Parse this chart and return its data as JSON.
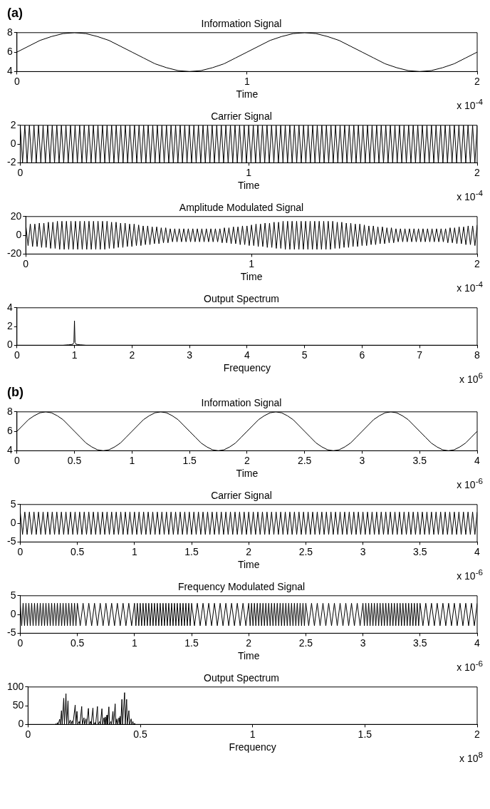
{
  "chart_data": [
    {
      "type": "line",
      "title": "Information Signal",
      "xlabel": "Time",
      "annotations": [
        "(a)",
        "x 10$^{-4}$"
      ],
      "xlim": [
        0,
        2
      ],
      "xticks": [
        0,
        1,
        2
      ],
      "ylim": [
        4,
        8
      ],
      "yticks": [
        4,
        6,
        8
      ],
      "color": "#000000",
      "x": [
        0,
        0.05,
        0.1,
        0.15,
        0.2,
        0.25,
        0.3,
        0.35,
        0.4,
        0.45,
        0.5,
        0.55,
        0.6,
        0.65,
        0.7,
        0.75,
        0.8,
        0.85,
        0.9,
        0.95,
        1,
        1.05,
        1.1,
        1.15,
        1.2,
        1.25,
        1.3,
        1.35,
        1.4,
        1.45,
        1.5,
        1.55,
        1.6,
        1.65,
        1.7,
        1.75,
        1.8,
        1.85,
        1.9,
        1.95,
        2
      ],
      "values": [
        6,
        6.6,
        7.2,
        7.6,
        7.9,
        8,
        7.9,
        7.6,
        7.2,
        6.6,
        6,
        5.4,
        4.8,
        4.4,
        4.1,
        4,
        4.1,
        4.4,
        4.8,
        5.4,
        6,
        6.6,
        7.2,
        7.6,
        7.9,
        8,
        7.9,
        7.6,
        7.2,
        6.6,
        6,
        5.4,
        4.8,
        4.4,
        4.1,
        4,
        4.1,
        4.4,
        4.8,
        5.4,
        6
      ]
    },
    {
      "type": "line",
      "title": "Carrier Signal",
      "xlabel": "Time",
      "annotations": [
        "x 10$^{-4}$"
      ],
      "xlim": [
        0,
        2
      ],
      "xticks": [
        0,
        1,
        2
      ],
      "ylim": [
        -2,
        2
      ],
      "yticks": [
        -2,
        0,
        2
      ],
      "color": "#000000",
      "x": [
        0,
        0.01,
        0.02,
        0.03,
        0.04,
        0.05,
        0.06,
        0.07,
        0.08,
        0.09,
        0.1,
        0.11,
        0.12,
        0.13,
        0.14,
        0.15,
        0.16,
        0.17,
        0.18,
        0.19,
        0.2,
        0.21,
        0.22,
        0.23,
        0.24,
        0.25,
        0.26,
        0.27,
        0.28,
        0.29,
        0.3,
        0.31,
        0.32,
        0.33,
        0.34,
        0.35,
        0.36,
        0.37,
        0.38,
        0.39,
        0.4,
        0.41,
        0.42,
        0.43,
        0.44,
        0.45,
        0.46,
        0.47,
        0.48,
        0.49,
        0.5,
        0.51,
        0.52,
        0.53,
        0.54,
        0.55,
        0.56,
        0.57,
        0.58,
        0.59,
        0.6,
        0.61,
        0.62,
        0.63,
        0.64,
        0.65,
        0.66,
        0.67,
        0.68,
        0.69,
        0.7,
        0.71,
        0.72,
        0.73,
        0.74,
        0.75,
        0.76,
        0.77,
        0.78,
        0.79,
        0.8,
        0.81,
        0.82,
        0.83,
        0.84,
        0.85,
        0.86,
        0.87,
        0.88,
        0.89,
        0.9,
        0.91,
        0.92,
        0.93,
        0.94,
        0.95,
        0.96,
        0.97,
        0.98,
        0.99,
        1,
        1.01,
        1.02,
        1.03,
        1.04,
        1.05,
        1.06,
        1.07,
        1.08,
        1.09,
        1.1,
        1.11,
        1.12,
        1.13,
        1.14,
        1.15,
        1.16,
        1.17,
        1.18,
        1.19,
        1.2,
        1.21,
        1.22,
        1.23,
        1.24,
        1.25,
        1.26,
        1.27,
        1.28,
        1.29,
        1.3,
        1.31,
        1.32,
        1.33,
        1.34,
        1.35,
        1.36,
        1.37,
        1.38,
        1.39,
        1.4,
        1.41,
        1.42,
        1.43,
        1.44,
        1.45,
        1.46,
        1.47,
        1.48,
        1.49,
        1.5,
        1.51,
        1.52,
        1.53,
        1.54,
        1.55,
        1.56,
        1.57,
        1.58,
        1.59,
        1.6,
        1.61,
        1.62,
        1.63,
        1.64,
        1.65,
        1.66,
        1.67,
        1.68,
        1.69,
        1.7,
        1.71,
        1.72,
        1.73,
        1.74,
        1.75,
        1.76,
        1.77,
        1.78,
        1.79,
        1.8,
        1.81,
        1.82,
        1.83,
        1.84,
        1.85,
        1.86,
        1.87,
        1.88,
        1.89,
        1.9,
        1.91,
        1.92,
        1.93,
        1.94,
        1.95,
        1.96,
        1.97,
        1.98,
        1.99,
        2
      ],
      "values": [
        2,
        -2,
        2,
        -2,
        2,
        -2,
        2,
        -2,
        2,
        -2,
        2,
        -2,
        2,
        -2,
        2,
        -2,
        2,
        -2,
        2,
        -2,
        2,
        -2,
        2,
        -2,
        2,
        -2,
        2,
        -2,
        2,
        -2,
        2,
        -2,
        2,
        -2,
        2,
        -2,
        2,
        -2,
        2,
        -2,
        2,
        -2,
        2,
        -2,
        2,
        -2,
        2,
        -2,
        2,
        -2,
        2,
        -2,
        2,
        -2,
        2,
        -2,
        2,
        -2,
        2,
        -2,
        2,
        -2,
        2,
        -2,
        2,
        -2,
        2,
        -2,
        2,
        -2,
        2,
        -2,
        2,
        -2,
        2,
        -2,
        2,
        -2,
        2,
        -2,
        2,
        -2,
        2,
        -2,
        2,
        -2,
        2,
        -2,
        2,
        -2,
        2,
        -2,
        2,
        -2,
        2,
        -2,
        2,
        -2,
        2,
        -2,
        2,
        -2,
        2,
        -2,
        2,
        -2,
        2,
        -2,
        2,
        -2,
        2,
        -2,
        2,
        -2,
        2,
        -2,
        2,
        -2,
        2,
        -2,
        2,
        -2,
        2,
        -2,
        2,
        -2,
        2,
        -2,
        2,
        -2,
        2,
        -2,
        2,
        -2,
        2,
        -2,
        2,
        -2,
        2,
        -2,
        2,
        -2,
        2,
        -2,
        2,
        -2,
        2,
        -2,
        2,
        -2,
        2,
        -2,
        2,
        -2,
        2,
        -2,
        2,
        -2,
        2,
        -2,
        2,
        -2,
        2,
        -2,
        2,
        -2,
        2,
        -2,
        2,
        -2,
        2,
        -2,
        2,
        -2,
        2,
        -2,
        2,
        -2,
        2,
        -2,
        2,
        -2,
        2,
        -2,
        2,
        -2,
        2,
        -2,
        2,
        -2,
        2,
        -2,
        2,
        -2,
        2,
        -2,
        2,
        -2,
        2,
        -2,
        2
      ]
    },
    {
      "type": "line",
      "title": "Amplitude Modulated Signal",
      "xlabel": "Time",
      "annotations": [
        "x 10$^{-4}$"
      ],
      "xlim": [
        0,
        2
      ],
      "xticks": [
        0,
        1,
        2
      ],
      "ylim": [
        -20,
        20
      ],
      "yticks": [
        -20,
        0,
        20
      ],
      "color": "#000000",
      "x": [
        0,
        0.01,
        0.02,
        0.03,
        0.04,
        0.05,
        0.06,
        0.07,
        0.08,
        0.09,
        0.1,
        0.11,
        0.12,
        0.13,
        0.14,
        0.15,
        0.16,
        0.17,
        0.18,
        0.19,
        0.2,
        0.21,
        0.22,
        0.23,
        0.24,
        0.25,
        0.26,
        0.27,
        0.28,
        0.29,
        0.3,
        0.31,
        0.32,
        0.33,
        0.34,
        0.35,
        0.36,
        0.37,
        0.38,
        0.39,
        0.4,
        0.41,
        0.42,
        0.43,
        0.44,
        0.45,
        0.46,
        0.47,
        0.48,
        0.49,
        0.5,
        0.51,
        0.52,
        0.53,
        0.54,
        0.55,
        0.56,
        0.57,
        0.58,
        0.59,
        0.6,
        0.61,
        0.62,
        0.63,
        0.64,
        0.65,
        0.66,
        0.67,
        0.68,
        0.69,
        0.7,
        0.71,
        0.72,
        0.73,
        0.74,
        0.75,
        0.76,
        0.77,
        0.78,
        0.79,
        0.8,
        0.81,
        0.82,
        0.83,
        0.84,
        0.85,
        0.86,
        0.87,
        0.88,
        0.89,
        0.9,
        0.91,
        0.92,
        0.93,
        0.94,
        0.95,
        0.96,
        0.97,
        0.98,
        0.99,
        1,
        1.01,
        1.02,
        1.03,
        1.04,
        1.05,
        1.06,
        1.07,
        1.08,
        1.09,
        1.1,
        1.11,
        1.12,
        1.13,
        1.14,
        1.15,
        1.16,
        1.17,
        1.18,
        1.19,
        1.2,
        1.21,
        1.22,
        1.23,
        1.24,
        1.25,
        1.26,
        1.27,
        1.28,
        1.29,
        1.3,
        1.31,
        1.32,
        1.33,
        1.34,
        1.35,
        1.36,
        1.37,
        1.38,
        1.39,
        1.4,
        1.41,
        1.42,
        1.43,
        1.44,
        1.45,
        1.46,
        1.47,
        1.48,
        1.49,
        1.5,
        1.51,
        1.52,
        1.53,
        1.54,
        1.55,
        1.56,
        1.57,
        1.58,
        1.59,
        1.6,
        1.61,
        1.62,
        1.63,
        1.64,
        1.65,
        1.66,
        1.67,
        1.68,
        1.69,
        1.7,
        1.71,
        1.72,
        1.73,
        1.74,
        1.75,
        1.76,
        1.77,
        1.78,
        1.79,
        1.8,
        1.81,
        1.82,
        1.83,
        1.84,
        1.85,
        1.86,
        1.87,
        1.88,
        1.89,
        1.9,
        1.91,
        1.92,
        1.93,
        1.94,
        1.95,
        1.96,
        1.97,
        1.98,
        1.99,
        2
      ],
      "values": [
        11,
        -11,
        12,
        -12,
        12,
        -12,
        13,
        -13,
        13,
        -13,
        14,
        -14,
        14,
        -14,
        15,
        -15,
        15,
        -15,
        15,
        -15,
        15,
        -15,
        15,
        -15,
        15,
        -15,
        15,
        -15,
        15,
        -15,
        15,
        -15,
        15,
        -15,
        15,
        -15,
        15,
        -14,
        14,
        -14,
        14,
        -13,
        13,
        -13,
        13,
        -12,
        12,
        -12,
        12,
        -11,
        11,
        -11,
        10,
        -10,
        10,
        -10,
        9,
        -9,
        9,
        -9,
        8,
        -8,
        8,
        -8,
        7,
        -7,
        7,
        -7,
        7,
        -7,
        7,
        -7,
        7,
        -7,
        7,
        -7,
        7,
        -7,
        7,
        -7,
        7,
        -7,
        7,
        -7,
        7,
        -7,
        7,
        -8,
        8,
        -8,
        8,
        -9,
        9,
        -9,
        9,
        -10,
        10,
        -10,
        10,
        -11,
        11,
        -11,
        12,
        -12,
        12,
        -12,
        13,
        -13,
        13,
        -13,
        14,
        -14,
        14,
        -14,
        15,
        -15,
        15,
        -15,
        15,
        -15,
        15,
        -15,
        15,
        -15,
        15,
        -15,
        15,
        -15,
        15,
        -15,
        15,
        -15,
        15,
        -15,
        15,
        -15,
        15,
        -14,
        14,
        -14,
        14,
        -13,
        13,
        -13,
        13,
        -12,
        12,
        -12,
        12,
        -11,
        11,
        -11,
        10,
        -10,
        10,
        -10,
        9,
        -9,
        9,
        -9,
        8,
        -8,
        8,
        -8,
        7,
        -7,
        7,
        -7,
        7,
        -7,
        7,
        -7,
        7,
        -7,
        7,
        -7,
        7,
        -7,
        7,
        -7,
        7,
        -7,
        7,
        -7,
        7,
        -7,
        7,
        -8,
        8,
        -8,
        8,
        -9,
        9,
        -9,
        9,
        -10,
        10,
        -10,
        10,
        -11,
        11
      ]
    },
    {
      "type": "line",
      "title": "Output Spectrum",
      "xlabel": "Frequency",
      "annotations": [
        "x 10$^{6}$"
      ],
      "xlim": [
        0,
        8
      ],
      "xticks": [
        0,
        1,
        2,
        3,
        4,
        5,
        6,
        7,
        8
      ],
      "ylim": [
        0,
        4
      ],
      "yticks": [
        0,
        2,
        4
      ],
      "color": "#000000",
      "x": [
        0,
        0.8,
        0.9,
        0.97,
        0.99,
        1,
        1.01,
        1.03,
        1.1,
        1.2,
        8
      ],
      "values": [
        0,
        0,
        0.05,
        0.1,
        0.3,
        2.6,
        0.3,
        0.1,
        0.05,
        0,
        0
      ]
    },
    {
      "type": "line",
      "title": "Information Signal",
      "xlabel": "Time",
      "annotations": [
        "(b)",
        "x 10$^{-6}$"
      ],
      "xlim": [
        0,
        4
      ],
      "xticks": [
        0,
        0.5,
        1,
        1.5,
        2,
        2.5,
        3,
        3.5,
        4
      ],
      "ylim": [
        4,
        8
      ],
      "yticks": [
        4,
        6,
        8
      ],
      "color": "#000000",
      "x": [
        0,
        0.05,
        0.1,
        0.15,
        0.2,
        0.25,
        0.3,
        0.35,
        0.4,
        0.45,
        0.5,
        0.55,
        0.6,
        0.65,
        0.7,
        0.75,
        0.8,
        0.85,
        0.9,
        0.95,
        1,
        1.05,
        1.1,
        1.15,
        1.2,
        1.25,
        1.3,
        1.35,
        1.4,
        1.45,
        1.5,
        1.55,
        1.6,
        1.65,
        1.7,
        1.75,
        1.8,
        1.85,
        1.9,
        1.95,
        2,
        2.05,
        2.1,
        2.15,
        2.2,
        2.25,
        2.3,
        2.35,
        2.4,
        2.45,
        2.5,
        2.55,
        2.6,
        2.65,
        2.7,
        2.75,
        2.8,
        2.85,
        2.9,
        2.95,
        3,
        3.05,
        3.1,
        3.15,
        3.2,
        3.25,
        3.3,
        3.35,
        3.4,
        3.45,
        3.5,
        3.55,
        3.6,
        3.65,
        3.7,
        3.75,
        3.8,
        3.85,
        3.9,
        3.95,
        4
      ],
      "values": [
        6,
        6.6,
        7.2,
        7.6,
        7.9,
        8,
        7.9,
        7.6,
        7.2,
        6.6,
        6,
        5.4,
        4.8,
        4.4,
        4.1,
        4,
        4.1,
        4.4,
        4.8,
        5.4,
        6,
        6.6,
        7.2,
        7.6,
        7.9,
        8,
        7.9,
        7.6,
        7.2,
        6.6,
        6,
        5.4,
        4.8,
        4.4,
        4.1,
        4,
        4.1,
        4.4,
        4.8,
        5.4,
        6,
        6.6,
        7.2,
        7.6,
        7.9,
        8,
        7.9,
        7.6,
        7.2,
        6.6,
        6,
        5.4,
        4.8,
        4.4,
        4.1,
        4,
        4.1,
        4.4,
        4.8,
        5.4,
        6,
        6.6,
        7.2,
        7.6,
        7.9,
        8,
        7.9,
        7.6,
        7.2,
        6.6,
        6,
        5.4,
        4.8,
        4.4,
        4.1,
        4,
        4.1,
        4.4,
        4.8,
        5.4,
        6
      ]
    },
    {
      "type": "line",
      "title": "Carrier Signal",
      "xlabel": "Time",
      "annotations": [
        "x 10$^{-6}$"
      ],
      "xlim": [
        0,
        4
      ],
      "xticks": [
        0,
        0.5,
        1,
        1.5,
        2,
        2.5,
        3,
        3.5,
        4
      ],
      "ylim": [
        -5,
        5
      ],
      "yticks": [
        -5,
        0,
        5
      ],
      "color": "#000000",
      "x": [
        0,
        0.02,
        0.04,
        0.06,
        0.08,
        0.1,
        0.12,
        0.14,
        0.16,
        0.18,
        0.2,
        0.22,
        0.24,
        0.26,
        0.28,
        0.3,
        0.32,
        0.34,
        0.36,
        0.38,
        0.4,
        0.42,
        0.44,
        0.46,
        0.48,
        0.5,
        0.52,
        0.54,
        0.56,
        0.58,
        0.6,
        0.62,
        0.64,
        0.66,
        0.68,
        0.7,
        0.72,
        0.74,
        0.76,
        0.78,
        0.8,
        0.82,
        0.84,
        0.86,
        0.88,
        0.9,
        0.92,
        0.94,
        0.96,
        0.98,
        1,
        1.02,
        1.04,
        1.06,
        1.08,
        1.1,
        1.12,
        1.14,
        1.16,
        1.18,
        1.2,
        1.22,
        1.24,
        1.26,
        1.28,
        1.3,
        1.32,
        1.34,
        1.36,
        1.38,
        1.4,
        1.42,
        1.44,
        1.46,
        1.48,
        1.5,
        1.52,
        1.54,
        1.56,
        1.58,
        1.6,
        1.62,
        1.64,
        1.66,
        1.68,
        1.7,
        1.72,
        1.74,
        1.76,
        1.78,
        1.8,
        1.82,
        1.84,
        1.86,
        1.88,
        1.9,
        1.92,
        1.94,
        1.96,
        1.98,
        2,
        2.02,
        2.04,
        2.06,
        2.08,
        2.1,
        2.12,
        2.14,
        2.16,
        2.18,
        2.2,
        2.22,
        2.24,
        2.26,
        2.28,
        2.3,
        2.32,
        2.34,
        2.36,
        2.38,
        2.4,
        2.42,
        2.44,
        2.46,
        2.48,
        2.5,
        2.52,
        2.54,
        2.56,
        2.58,
        2.6,
        2.62,
        2.64,
        2.66,
        2.68,
        2.7,
        2.72,
        2.74,
        2.76,
        2.78,
        2.8,
        2.82,
        2.84,
        2.86,
        2.88,
        2.9,
        2.92,
        2.94,
        2.96,
        2.98,
        3,
        3.02,
        3.04,
        3.06,
        3.08,
        3.1,
        3.12,
        3.14,
        3.16,
        3.18,
        3.2,
        3.22,
        3.24,
        3.26,
        3.28,
        3.3,
        3.32,
        3.34,
        3.36,
        3.38,
        3.4,
        3.42,
        3.44,
        3.46,
        3.48,
        3.5,
        3.52,
        3.54,
        3.56,
        3.58,
        3.6,
        3.62,
        3.64,
        3.66,
        3.68,
        3.7,
        3.72,
        3.74,
        3.76,
        3.78,
        3.8,
        3.82,
        3.84,
        3.86,
        3.88,
        3.9,
        3.92,
        3.94,
        3.96,
        3.98,
        4
      ],
      "values": [
        3,
        -3,
        3,
        -3,
        3,
        -3,
        3,
        -3,
        3,
        -3,
        3,
        -3,
        3,
        -3,
        3,
        -3,
        3,
        -3,
        3,
        -3,
        3,
        -3,
        3,
        -3,
        3,
        -3,
        3,
        -3,
        3,
        -3,
        3,
        -3,
        3,
        -3,
        3,
        -3,
        3,
        -3,
        3,
        -3,
        3,
        -3,
        3,
        -3,
        3,
        -3,
        3,
        -3,
        3,
        -3,
        3,
        -3,
        3,
        -3,
        3,
        -3,
        3,
        -3,
        3,
        -3,
        3,
        -3,
        3,
        -3,
        3,
        -3,
        3,
        -3,
        3,
        -3,
        3,
        -3,
        3,
        -3,
        3,
        -3,
        3,
        -3,
        3,
        -3,
        3,
        -3,
        3,
        -3,
        3,
        -3,
        3,
        -3,
        3,
        -3,
        3,
        -3,
        3,
        -3,
        3,
        -3,
        3,
        -3,
        3,
        -3,
        3,
        -3,
        3,
        -3,
        3,
        -3,
        3,
        -3,
        3,
        -3,
        3,
        -3,
        3,
        -3,
        3,
        -3,
        3,
        -3,
        3,
        -3,
        3,
        -3,
        3,
        -3,
        3,
        -3,
        3,
        -3,
        3,
        -3,
        3,
        -3,
        3,
        -3,
        3,
        -3,
        3,
        -3,
        3,
        -3,
        3,
        -3,
        3,
        -3,
        3,
        -3,
        3,
        -3,
        3,
        -3,
        3,
        -3,
        3,
        -3,
        3,
        -3,
        3,
        -3,
        3,
        -3,
        3,
        -3,
        3,
        -3,
        3,
        -3,
        3,
        -3,
        3,
        -3,
        3,
        -3,
        3,
        -3,
        3,
        -3,
        3,
        -3,
        3,
        -3,
        3,
        -3,
        3,
        -3,
        3,
        -3,
        3,
        -3,
        3,
        -3,
        3,
        -3,
        3,
        -3,
        3,
        -3,
        3,
        -3,
        3,
        -3,
        3
      ]
    },
    {
      "type": "line",
      "title": "Frequency Modulated Signal",
      "xlabel": "Time",
      "annotations": [
        "x 10$^{-6}$"
      ],
      "xlim": [
        0,
        4
      ],
      "xticks": [
        0,
        0.5,
        1,
        1.5,
        2,
        2.5,
        3,
        3.5,
        4
      ],
      "ylim": [
        -5,
        5
      ],
      "yticks": [
        -5,
        0,
        5
      ],
      "color": "#000000",
      "x": [
        0,
        0.0125,
        0.025,
        0.0375,
        0.05,
        0.0625,
        0.075,
        0.0875,
        0.1,
        0.1125,
        0.125,
        0.1375,
        0.15,
        0.1625,
        0.175,
        0.1875,
        0.2,
        0.2125,
        0.225,
        0.2375,
        0.25,
        0.2625,
        0.275,
        0.2875,
        0.3,
        0.3125,
        0.325,
        0.3375,
        0.35,
        0.3625,
        0.375,
        0.3875,
        0.4,
        0.4125,
        0.425,
        0.4375,
        0.45,
        0.4625,
        0.475,
        0.4875,
        0.5,
        0.525,
        0.55,
        0.575,
        0.6,
        0.625,
        0.65,
        0.675,
        0.7,
        0.725,
        0.75,
        0.775,
        0.8,
        0.825,
        0.85,
        0.875,
        0.9,
        0.925,
        0.95,
        0.975,
        1,
        1.0125,
        1.025,
        1.0375,
        1.05,
        1.0625,
        1.075,
        1.0875,
        1.1,
        1.1125,
        1.125,
        1.1375,
        1.15,
        1.1625,
        1.175,
        1.1875,
        1.2,
        1.2125,
        1.225,
        1.2375,
        1.25,
        1.2625,
        1.275,
        1.2875,
        1.3,
        1.3125,
        1.325,
        1.3375,
        1.35,
        1.3625,
        1.375,
        1.3875,
        1.4,
        1.4125,
        1.425,
        1.4375,
        1.45,
        1.4625,
        1.475,
        1.4875,
        1.5,
        1.525,
        1.55,
        1.575,
        1.6,
        1.625,
        1.65,
        1.675,
        1.7,
        1.725,
        1.75,
        1.775,
        1.8,
        1.825,
        1.85,
        1.875,
        1.9,
        1.925,
        1.95,
        1.975,
        2,
        2.0125,
        2.025,
        2.0375,
        2.05,
        2.0625,
        2.075,
        2.0875,
        2.1,
        2.1125,
        2.125,
        2.1375,
        2.15,
        2.1625,
        2.175,
        2.1875,
        2.2,
        2.2125,
        2.225,
        2.2375,
        2.25,
        2.2625,
        2.275,
        2.2875,
        2.3,
        2.3125,
        2.325,
        2.3375,
        2.35,
        2.3625,
        2.375,
        2.3875,
        2.4,
        2.4125,
        2.425,
        2.4375,
        2.45,
        2.4625,
        2.475,
        2.4875,
        2.5,
        2.525,
        2.55,
        2.575,
        2.6,
        2.625,
        2.65,
        2.675,
        2.7,
        2.725,
        2.75,
        2.775,
        2.8,
        2.825,
        2.85,
        2.875,
        2.9,
        2.925,
        2.95,
        2.975,
        3,
        3.0125,
        3.025,
        3.0375,
        3.05,
        3.0625,
        3.075,
        3.0875,
        3.1,
        3.1125,
        3.125,
        3.1375,
        3.15,
        3.1625,
        3.175,
        3.1875,
        3.2,
        3.2125,
        3.225,
        3.2375,
        3.25,
        3.2625,
        3.275,
        3.2875,
        3.3,
        3.3125,
        3.325,
        3.3375,
        3.35,
        3.3625,
        3.375,
        3.3875,
        3.4,
        3.4125,
        3.425,
        3.4375,
        3.45,
        3.4625,
        3.475,
        3.4875,
        3.5,
        3.525,
        3.55,
        3.575,
        3.6,
        3.625,
        3.65,
        3.675,
        3.7,
        3.725,
        3.75,
        3.775,
        3.8,
        3.825,
        3.85,
        3.875,
        3.9,
        3.925,
        3.95,
        3.975,
        4
      ],
      "values": [
        3,
        -3,
        3,
        -3,
        3,
        -3,
        3,
        -3,
        3,
        -3,
        3,
        -3,
        3,
        -3,
        3,
        -3,
        3,
        -3,
        3,
        -3,
        3,
        -3,
        3,
        -3,
        3,
        -3,
        3,
        -3,
        3,
        -3,
        3,
        -3,
        3,
        -3,
        3,
        -3,
        3,
        -3,
        3,
        -3,
        3,
        -3,
        3,
        -3,
        3,
        -3,
        3,
        -3,
        3,
        -3,
        3,
        -3,
        3,
        -3,
        3,
        -3,
        3,
        -3,
        3,
        -3,
        3,
        -3,
        3,
        -3,
        3,
        -3,
        3,
        -3,
        3,
        -3,
        3,
        -3,
        3,
        -3,
        3,
        -3,
        3,
        -3,
        3,
        -3,
        3,
        -3,
        3,
        -3,
        3,
        -3,
        3,
        -3,
        3,
        -3,
        3,
        -3,
        3,
        -3,
        3,
        -3,
        3,
        -3,
        3,
        -3,
        3,
        -3,
        3,
        -3,
        3,
        -3,
        3,
        -3,
        3,
        -3,
        3,
        -3,
        3,
        -3,
        3,
        -3,
        3,
        -3,
        3,
        -3,
        3,
        -3,
        3,
        -3,
        3,
        -3,
        3,
        -3,
        3,
        -3,
        3,
        -3,
        3,
        -3,
        3,
        -3,
        3,
        -3,
        3,
        -3,
        3,
        -3,
        3,
        -3,
        3,
        -3,
        3,
        -3,
        3,
        -3,
        3,
        -3,
        3,
        -3,
        3,
        -3,
        3,
        -3,
        3,
        -3,
        3,
        -3,
        3,
        -3,
        3,
        -3,
        3,
        -3,
        3,
        -3,
        3,
        -3,
        3,
        -3,
        3,
        -3,
        3,
        -3,
        3,
        -3,
        3,
        -3,
        3,
        -3,
        3,
        -3,
        3,
        -3,
        3,
        -3,
        3,
        -3,
        3,
        -3,
        3,
        -3,
        3,
        -3,
        3,
        -3,
        3,
        -3,
        3,
        -3,
        3,
        -3,
        3,
        -3,
        3,
        -3,
        3,
        -3,
        3,
        -3,
        3,
        -3,
        3,
        -3,
        3,
        -3,
        3,
        -3,
        3,
        -3,
        3,
        -3,
        3,
        -3,
        3,
        -3,
        3,
        -3,
        3,
        -3,
        3,
        -3,
        3,
        -3,
        3,
        -3,
        3
      ]
    },
    {
      "type": "line",
      "title": "Output Spectrum",
      "xlabel": "Frequency",
      "annotations": [
        "x 10$^{8}$"
      ],
      "xlim": [
        0,
        2
      ],
      "xticks": [
        0,
        0.5,
        1,
        1.5,
        2
      ],
      "ylim": [
        0,
        100
      ],
      "yticks": [
        0,
        50,
        100
      ],
      "color": "#000000",
      "x": [
        0,
        0.12,
        0.126,
        0.129,
        0.131,
        0.134,
        0.141,
        0.144,
        0.149,
        0.152,
        0.159,
        0.162,
        0.169,
        0.172,
        0.178,
        0.181,
        0.188,
        0.191,
        0.197,
        0.2,
        0.21,
        0.213,
        0.218,
        0.221,
        0.228,
        0.231,
        0.239,
        0.242,
        0.249,
        0.252,
        0.258,
        0.261,
        0.269,
        0.272,
        0.278,
        0.281,
        0.289,
        0.292,
        0.298,
        0.301,
        0.309,
        0.312,
        0.319,
        0.322,
        0.329,
        0.332,
        0.338,
        0.341,
        0.344,
        0.347,
        0.351,
        0.354,
        0.36,
        0.363,
        0.369,
        0.372,
        0.378,
        0.381,
        0.388,
        0.391,
        0.396,
        0.399,
        0.405,
        0.408,
        0.41,
        0.413,
        0.418,
        0.421,
        0.43,
        0.433,
        0.439,
        0.442,
        0.449,
        0.452,
        0.459,
        0.462,
        0.467,
        0.47,
        0.475,
        0.478,
        2
      ],
      "values": [
        0,
        0,
        2,
        0,
        5,
        0,
        14,
        0,
        37,
        0,
        70,
        0,
        82,
        0,
        63,
        0,
        12,
        0,
        10,
        0,
        52,
        0,
        35,
        0,
        8,
        0,
        48,
        0,
        18,
        0,
        15,
        0,
        43,
        0,
        8,
        0,
        44,
        0,
        5,
        0,
        48,
        0,
        8,
        0,
        42,
        0,
        18,
        0,
        20,
        0,
        25,
        0,
        47,
        0,
        8,
        0,
        35,
        0,
        55,
        0,
        15,
        0,
        18,
        0,
        22,
        0,
        67,
        0,
        85,
        0,
        67,
        0,
        37,
        0,
        15,
        0,
        8,
        0,
        3,
        0,
        0
      ]
    }
  ]
}
